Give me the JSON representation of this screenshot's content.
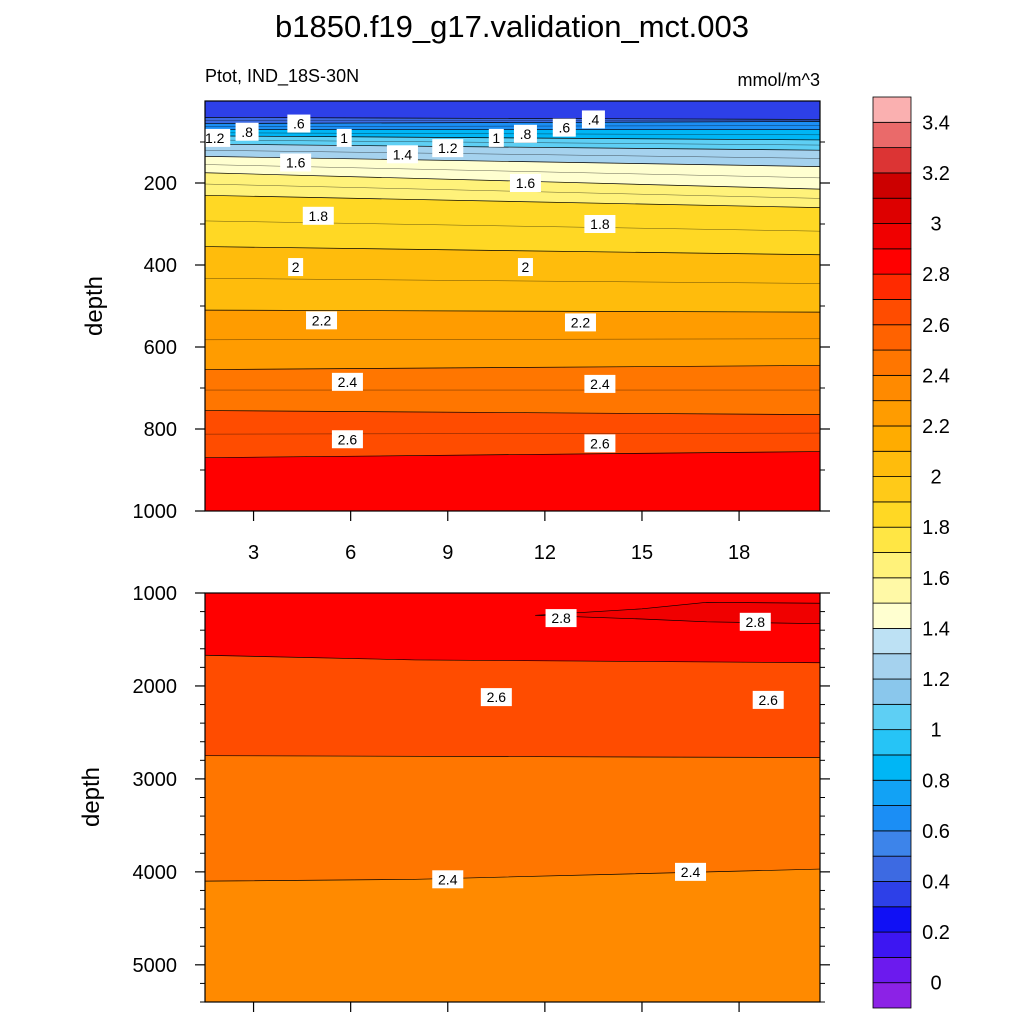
{
  "title": "b1850.f19_g17.validation_mct.003",
  "panel_left_label": "Ptot, IND_18S-30N",
  "panel_right_label": "mmol/m^3",
  "colorbar": {
    "colors": [
      "#8c22e6",
      "#6c1aee",
      "#3d16f2",
      "#1010f5",
      "#2d40e8",
      "#3d6ae2",
      "#3d84ea",
      "#1b8ef5",
      "#12a2f5",
      "#00b6f5",
      "#26c4f6",
      "#5ecff4",
      "#8ac7ec",
      "#a5d2ee",
      "#bde1f4",
      "#ffffd0",
      "#fff9a6",
      "#fff27a",
      "#ffe644",
      "#ffd824",
      "#ffca18",
      "#ffbc0c",
      "#ffac00",
      "#ff9c00",
      "#ff8a00",
      "#ff7600",
      "#ff6200",
      "#ff4c00",
      "#ff2a00",
      "#ff0000",
      "#f00000",
      "#dd0000",
      "#cc0000",
      "#dc3434",
      "#ea6a6a",
      "#fab0b0"
    ],
    "tick_labels": [
      "0",
      "0.2",
      "0.4",
      "0.6",
      "0.8",
      "1",
      "1.2",
      "1.4",
      "1.6",
      "1.8",
      "2",
      "2.2",
      "2.4",
      "2.6",
      "2.8",
      "3",
      "3.2",
      "3.4"
    ]
  },
  "chart_data": [
    {
      "type": "heatmap",
      "subtype": "filled-contour",
      "x_tick_labels": [
        "3",
        "6",
        "9",
        "12",
        "15",
        "18"
      ],
      "xlim": [
        1.5,
        20.5
      ],
      "ylabel": "depth",
      "ylim": [
        1000,
        0
      ],
      "y_tick_labels": [
        "200",
        "400",
        "600",
        "800",
        "1000"
      ],
      "contour_levels": [
        0.4,
        0.6,
        0.8,
        1,
        1.2,
        1.4,
        1.6,
        1.8,
        2,
        2.2,
        2.4,
        2.6,
        2.8
      ],
      "contour_depth_profile": {
        "x": [
          1.5,
          20.5
        ],
        "isolines": [
          {
            "value": 0.4,
            "depth": [
              40,
              45
            ]
          },
          {
            "value": 0.6,
            "depth": [
              55,
              50
            ]
          },
          {
            "value": 0.8,
            "depth": [
              70,
              70
            ]
          },
          {
            "value": 1.0,
            "depth": [
              85,
              95
            ]
          },
          {
            "value": 1.2,
            "depth": [
              105,
              120
            ]
          },
          {
            "value": 1.4,
            "depth": [
              135,
              160
            ]
          },
          {
            "value": 1.6,
            "depth": [
              175,
              215
            ]
          },
          {
            "value": 1.8,
            "depth": [
              230,
              260
            ]
          },
          {
            "value": 2.0,
            "depth": [
              355,
              375
            ]
          },
          {
            "value": 2.2,
            "depth": [
              510,
              515
            ]
          },
          {
            "value": 2.4,
            "depth": [
              655,
              645
            ]
          },
          {
            "value": 2.6,
            "depth": [
              755,
              765
            ]
          },
          {
            "value": 2.8,
            "depth": [
              870,
              855
            ]
          }
        ]
      },
      "contour_labels": [
        {
          "text": "1.2",
          "x": 1.8,
          "depth": 90
        },
        {
          "text": ".8",
          "x": 2.8,
          "depth": 75
        },
        {
          "text": ".6",
          "x": 4.4,
          "depth": 55
        },
        {
          "text": "1",
          "x": 5.8,
          "depth": 90
        },
        {
          "text": "1.6",
          "x": 4.3,
          "depth": 150
        },
        {
          "text": "1.4",
          "x": 7.6,
          "depth": 130
        },
        {
          "text": "1.2",
          "x": 9.0,
          "depth": 115
        },
        {
          "text": "1",
          "x": 10.5,
          "depth": 90
        },
        {
          "text": ".8",
          "x": 11.4,
          "depth": 80
        },
        {
          "text": ".6",
          "x": 12.6,
          "depth": 65
        },
        {
          "text": ".4",
          "x": 13.5,
          "depth": 45
        },
        {
          "text": "1.6",
          "x": 11.4,
          "depth": 200
        },
        {
          "text": "1.8",
          "x": 5.0,
          "depth": 280
        },
        {
          "text": "1.8",
          "x": 13.7,
          "depth": 300
        },
        {
          "text": "2",
          "x": 4.3,
          "depth": 405
        },
        {
          "text": "2",
          "x": 11.4,
          "depth": 405
        },
        {
          "text": "2.2",
          "x": 5.1,
          "depth": 535
        },
        {
          "text": "2.2",
          "x": 13.1,
          "depth": 540
        },
        {
          "text": "2.4",
          "x": 5.9,
          "depth": 685
        },
        {
          "text": "2.4",
          "x": 13.7,
          "depth": 690
        },
        {
          "text": "2.6",
          "x": 5.9,
          "depth": 825
        },
        {
          "text": "2.6",
          "x": 13.7,
          "depth": 835
        }
      ]
    },
    {
      "type": "heatmap",
      "subtype": "filled-contour",
      "xlim": [
        1.5,
        20.5
      ],
      "ylabel": "depth",
      "ylim": [
        5400,
        1000
      ],
      "y_tick_labels": [
        "1000",
        "2000",
        "3000",
        "4000",
        "5000"
      ],
      "contour_levels": [
        2.4,
        2.6,
        2.8
      ],
      "contour_depth_profile": {
        "isolines": [
          {
            "value": 2.8,
            "depth_points": [
              [
                1.5,
                1670
              ],
              [
                8,
                1720
              ],
              [
                20.5,
                1750
              ]
            ]
          },
          {
            "value": 2.6,
            "depth_points": [
              [
                1.5,
                2750
              ],
              [
                20.5,
                2770
              ]
            ]
          },
          {
            "value": 2.4,
            "depth_points": [
              [
                1.5,
                4100
              ],
              [
                8,
                4080
              ],
              [
                20.5,
                3970
              ]
            ]
          },
          {
            "value": 2.8,
            "region": "closed high",
            "depth_points": [
              [
                11.7,
                1240
              ],
              [
                15,
                1170
              ],
              [
                17,
                1100
              ],
              [
                20.5,
                1110
              ],
              [
                20.5,
                1330
              ],
              [
                17,
                1310
              ],
              [
                15,
                1280
              ],
              [
                11.7,
                1240
              ]
            ]
          }
        ]
      },
      "contour_labels": [
        {
          "text": "2.8",
          "x": 12.5,
          "depth": 1270
        },
        {
          "text": "2.8",
          "x": 18.5,
          "depth": 1310
        },
        {
          "text": "2.6",
          "x": 10.5,
          "depth": 2120
        },
        {
          "text": "2.6",
          "x": 18.9,
          "depth": 2150
        },
        {
          "text": "2.4",
          "x": 9.0,
          "depth": 4080
        },
        {
          "text": "2.4",
          "x": 16.5,
          "depth": 4000
        }
      ]
    }
  ]
}
